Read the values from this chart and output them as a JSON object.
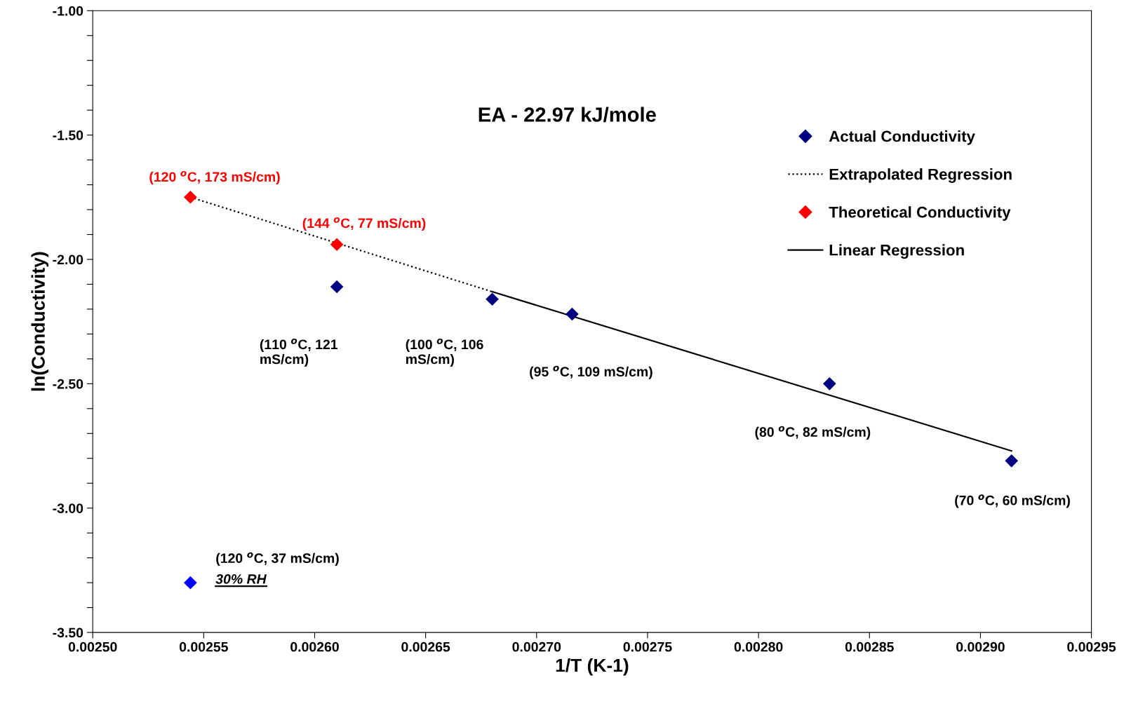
{
  "chart_data": {
    "type": "scatter",
    "xlabel": "1/T (K-1)",
    "ylabel": "ln(Conductivity)",
    "xlim": [
      0.0025,
      0.00295
    ],
    "xticks": [
      {
        "value": 0.0025,
        "label": "0.00250"
      },
      {
        "value": 0.00255,
        "label": "0.00255"
      },
      {
        "value": 0.0026,
        "label": "0.00260"
      },
      {
        "value": 0.00265,
        "label": "0.00265"
      },
      {
        "value": 0.0027,
        "label": "0.00270"
      },
      {
        "value": 0.00275,
        "label": "0.00275"
      },
      {
        "value": 0.0028,
        "label": "0.00280"
      },
      {
        "value": 0.00285,
        "label": "0.00285"
      },
      {
        "value": 0.0029,
        "label": "0.00290"
      },
      {
        "value": 0.00295,
        "label": "0.00295"
      }
    ],
    "ylim": [
      -3.5,
      -1.0
    ],
    "yticks": [
      {
        "value": -3.5,
        "label": "-3.50"
      },
      {
        "value": -3.4,
        "label": null
      },
      {
        "value": -3.3,
        "label": null
      },
      {
        "value": -3.2,
        "label": null
      },
      {
        "value": -3.1,
        "label": null
      },
      {
        "value": -3.0,
        "label": "-3.00"
      },
      {
        "value": -2.9,
        "label": null
      },
      {
        "value": -2.8,
        "label": null
      },
      {
        "value": -2.7,
        "label": null
      },
      {
        "value": -2.6,
        "label": null
      },
      {
        "value": -2.5,
        "label": "-2.50"
      },
      {
        "value": -2.4,
        "label": null
      },
      {
        "value": -2.3,
        "label": null
      },
      {
        "value": -2.2,
        "label": null
      },
      {
        "value": -2.1,
        "label": null
      },
      {
        "value": -2.0,
        "label": "-2.00"
      },
      {
        "value": -1.9,
        "label": null
      },
      {
        "value": -1.8,
        "label": null
      },
      {
        "value": -1.7,
        "label": null
      },
      {
        "value": -1.6,
        "label": null
      },
      {
        "value": -1.5,
        "label": "-1.50"
      },
      {
        "value": -1.4,
        "label": null
      },
      {
        "value": -1.3,
        "label": null
      },
      {
        "value": -1.2,
        "label": null
      },
      {
        "value": -1.1,
        "label": null
      },
      {
        "value": -1.0,
        "label": "-1.00"
      }
    ],
    "grid": false,
    "legend": "top right",
    "series": [
      {
        "name": "Actual Conductivity",
        "type": "scatter",
        "marker": "diamond",
        "color": "#000080",
        "x": [
          0.00261,
          0.00268,
          0.002716,
          0.002832,
          0.002914
        ],
        "values": [
          -2.11,
          -2.16,
          -2.22,
          -2.5,
          -2.81
        ]
      },
      {
        "name": "Extrapolated Regression",
        "type": "line",
        "marker": "none",
        "line_style": "dotted",
        "color": "#000000",
        "x": [
          0.002544,
          0.00268
        ],
        "values": [
          -1.75,
          -2.13
        ]
      },
      {
        "name": "Theoretical Conductivity",
        "type": "scatter",
        "marker": "diamond",
        "color": "#ff0000",
        "x": [
          0.002544,
          0.00261
        ],
        "values": [
          -1.75,
          -1.94
        ]
      },
      {
        "name": "Linear Regression",
        "type": "line",
        "marker": "none",
        "line_style": "solid",
        "color": "#000000",
        "x": [
          0.00268,
          0.002914
        ],
        "values": [
          -2.13,
          -2.77
        ]
      },
      {
        "marker": "diamond",
        "color": "#0000ff",
        "x": [
          0.002544
        ],
        "values": [
          -3.3
        ]
      }
    ],
    "annotations": [
      "EA - 22.97 kJ/mole",
      {
        "text": "(120 $^{o}$C, 173 mS/cm)",
        "x": 0.002544,
        "y": -1.75
      },
      {
        "text": "(144 $^{o}$C, 77 mS/cm)",
        "x": 0.00261,
        "y": -1.94
      },
      "(110 $^{o}$C, 121\nmS/cm)",
      "(100 $^{o}$C, 106\nmS/cm)",
      "(95 $^{o}$C, 109 mS/cm)",
      "(80 $^{o}$C, 82 mS/cm)",
      "(70 $^{o}$C, 60 mS/cm)",
      "(120 $^{o}$C, 37 mS/cm)",
      "30% RH"
    ]
  }
}
